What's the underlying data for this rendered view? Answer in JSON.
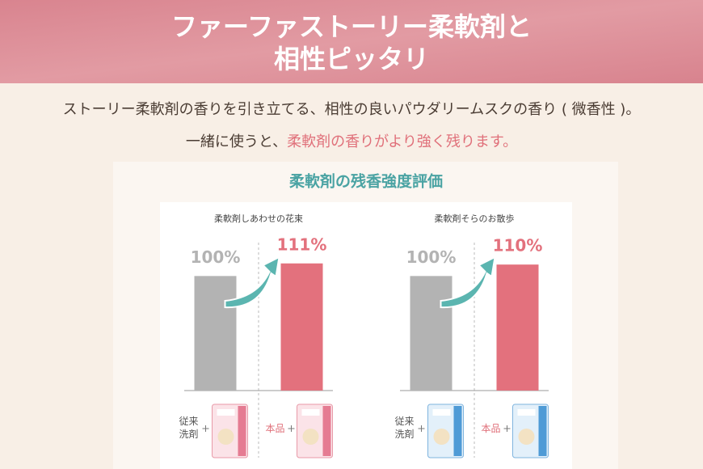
{
  "header": {
    "title_lines": [
      "ファーファストーリー柔軟剤と",
      "相性ピッタリ"
    ]
  },
  "intro": {
    "line1": "ストーリー柔軟剤の香りを引き立てる、相性の良いパウダリームスクの香り ( 微香性 )。",
    "line2": "一緒に使うと、",
    "line2_highlight": "柔軟剤の香りがより強く残ります。"
  },
  "section_title": "柔軟剤の残香強度評価",
  "chart_data": [
    {
      "type": "bar",
      "title": "柔軟剤しあわせの花束",
      "categories": [
        "従来洗剤",
        "本品"
      ],
      "values": [
        100,
        111
      ],
      "value_labels": [
        "100%",
        "111%"
      ],
      "colors": [
        "#b3b3b3",
        "#e3717d"
      ],
      "ylim": [
        0,
        120
      ]
    },
    {
      "type": "bar",
      "title": "柔軟剤そらのお散歩",
      "categories": [
        "従来洗剤",
        "本品"
      ],
      "values": [
        100,
        110
      ],
      "value_labels": [
        "100%",
        "110%"
      ],
      "colors": [
        "#b3b3b3",
        "#e3717d"
      ],
      "ylim": [
        0,
        120
      ]
    }
  ]
}
